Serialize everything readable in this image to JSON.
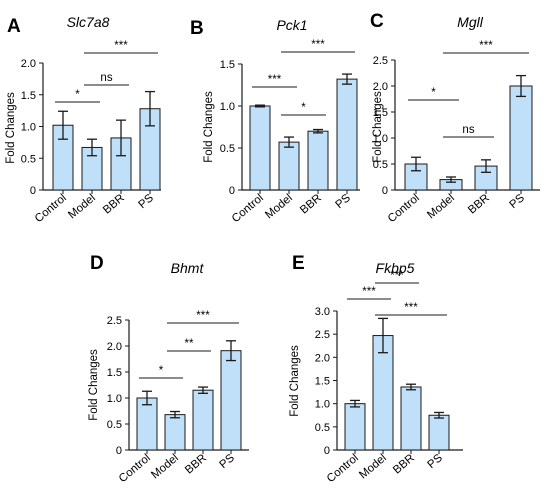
{
  "chart_data": [
    {
      "panel": "A",
      "type": "bar",
      "title": "Slc7a8",
      "ylabel": "Fold Changes",
      "categories": [
        "Control",
        "Model",
        "BBR",
        "PS"
      ],
      "values": [
        1.02,
        0.67,
        0.82,
        1.28
      ],
      "errors": [
        0.22,
        0.13,
        0.28,
        0.27
      ],
      "ylim": [
        0,
        2.0
      ],
      "yticks": [
        "0",
        "0.5",
        "1.0",
        "1.5",
        "2.0"
      ],
      "significance": [
        {
          "from": "Control",
          "to": "Model",
          "label": "*"
        },
        {
          "from": "Model",
          "to": "BBR",
          "label": "ns"
        },
        {
          "from": "Model",
          "to": "PS",
          "label": "***"
        }
      ]
    },
    {
      "panel": "B",
      "type": "bar",
      "title": "Pck1",
      "ylabel": "Fold Changes",
      "categories": [
        "Control",
        "Model",
        "BBR",
        "PS"
      ],
      "values": [
        1.0,
        0.57,
        0.7,
        1.32
      ],
      "errors": [
        0.01,
        0.06,
        0.02,
        0.06
      ],
      "ylim": [
        0,
        1.5
      ],
      "yticks": [
        "0",
        "0.5",
        "1.0",
        "1.5"
      ],
      "significance": [
        {
          "from": "Control",
          "to": "Model",
          "label": "***"
        },
        {
          "from": "Model",
          "to": "BBR",
          "label": "*"
        },
        {
          "from": "Model",
          "to": "PS",
          "label": "***"
        }
      ]
    },
    {
      "panel": "C",
      "type": "bar",
      "title": "Mgll",
      "ylabel": "Fold Changes",
      "categories": [
        "Control",
        "Model",
        "BBR",
        "PS"
      ],
      "values": [
        0.5,
        0.2,
        0.46,
        2.0
      ],
      "errors": [
        0.13,
        0.05,
        0.12,
        0.2
      ],
      "ylim": [
        0,
        2.5
      ],
      "yticks": [
        "0",
        "0.5",
        "1.0",
        "1.5",
        "2.0",
        "2.5"
      ],
      "significance": [
        {
          "from": "Control",
          "to": "Model",
          "label": "*"
        },
        {
          "from": "Model",
          "to": "BBR",
          "label": "ns"
        },
        {
          "from": "Model",
          "to": "PS",
          "label": "***"
        }
      ]
    },
    {
      "panel": "D",
      "type": "bar",
      "title": "Bhmt",
      "ylabel": "Fold Changes",
      "categories": [
        "Control",
        "Model",
        "BBR",
        "PS"
      ],
      "values": [
        1.0,
        0.68,
        1.15,
        1.91
      ],
      "errors": [
        0.13,
        0.06,
        0.06,
        0.19
      ],
      "ylim": [
        0,
        2.5
      ],
      "yticks": [
        "0",
        "0.5",
        "1.0",
        "1.5",
        "2.0",
        "2.5"
      ],
      "significance": [
        {
          "from": "Control",
          "to": "Model",
          "label": "*"
        },
        {
          "from": "Model",
          "to": "BBR",
          "label": "**"
        },
        {
          "from": "Model",
          "to": "PS",
          "label": "***"
        }
      ]
    },
    {
      "panel": "E",
      "type": "bar",
      "title": "Fkbp5",
      "ylabel": "Fold Changes",
      "categories": [
        "Control",
        "Model",
        "BBR",
        "PS"
      ],
      "values": [
        1.0,
        2.47,
        1.36,
        0.75
      ],
      "errors": [
        0.07,
        0.37,
        0.06,
        0.06
      ],
      "ylim": [
        0,
        3.0
      ],
      "yticks": [
        "0",
        "0.5",
        "1.0",
        "1.5",
        "2.0",
        "2.5",
        "3.0"
      ],
      "significance": [
        {
          "from": "Control",
          "to": "Model",
          "label": "***"
        },
        {
          "from": "Model",
          "to": "BBR",
          "label": "***"
        },
        {
          "from": "Model",
          "to": "PS",
          "label": "***"
        }
      ]
    }
  ]
}
